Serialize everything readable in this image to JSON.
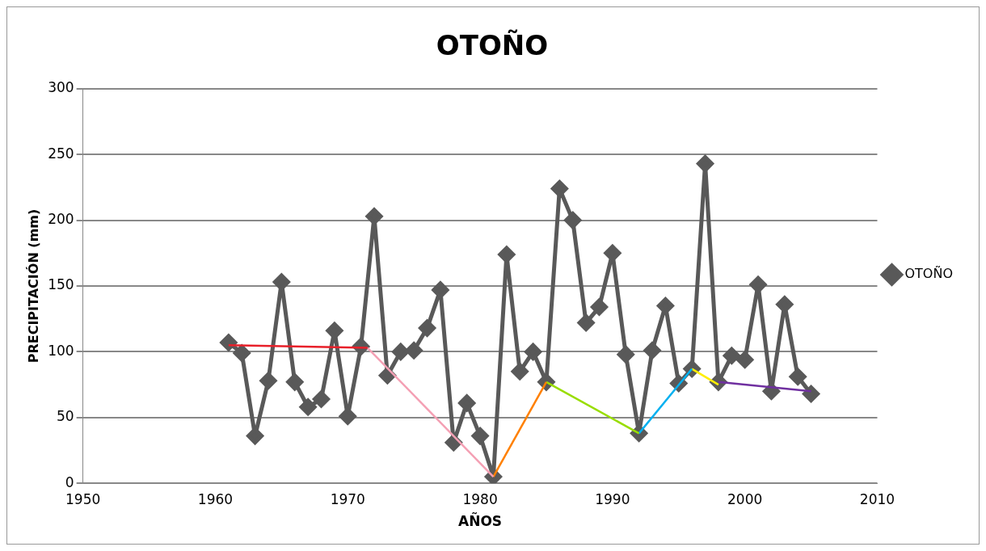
{
  "chart_data": {
    "type": "line",
    "title": "OTOÑO",
    "xlabel": "AÑOS",
    "ylabel": "PRECIPITACIÓN (mm)",
    "x": [
      1961,
      1962,
      1963,
      1964,
      1965,
      1966,
      1967,
      1968,
      1969,
      1970,
      1971,
      1972,
      1973,
      1974,
      1975,
      1976,
      1977,
      1978,
      1979,
      1980,
      1981,
      1982,
      1983,
      1984,
      1985,
      1986,
      1987,
      1988,
      1989,
      1990,
      1991,
      1992,
      1993,
      1994,
      1995,
      1996,
      1997,
      1998,
      1999,
      2000,
      2001,
      2002,
      2003,
      2004,
      2005
    ],
    "series": [
      {
        "name": "OTOÑO",
        "color": "#595959",
        "values": [
          107,
          99,
          36,
          78,
          153,
          77,
          58,
          64,
          116,
          51,
          104,
          203,
          82,
          100,
          101,
          118,
          147,
          31,
          61,
          36,
          5,
          174,
          85,
          100,
          77,
          224,
          200,
          122,
          134,
          175,
          98,
          38,
          101,
          135,
          76,
          87,
          243,
          77,
          97,
          94,
          151,
          70,
          136,
          81,
          68
        ]
      },
      {
        "type": "line",
        "marker": "none",
        "color": "#e8202a",
        "x": [
          1961,
          1971.5
        ],
        "values": [
          105,
          103
        ]
      },
      {
        "type": "line",
        "marker": "none",
        "color": "#f4a0b4",
        "x": [
          1971.5,
          1981
        ],
        "values": [
          103,
          5
        ]
      },
      {
        "type": "line",
        "marker": "none",
        "color": "#ff8000",
        "x": [
          1981,
          1985
        ],
        "values": [
          5,
          77
        ]
      },
      {
        "type": "line",
        "marker": "none",
        "color": "#99dd00",
        "x": [
          1985,
          1992
        ],
        "values": [
          77,
          38
        ]
      },
      {
        "type": "line",
        "marker": "none",
        "color": "#00b0f0",
        "x": [
          1992,
          1996
        ],
        "values": [
          38,
          87
        ]
      },
      {
        "type": "line",
        "marker": "none",
        "color": "#ffee00",
        "x": [
          1996,
          1998
        ],
        "values": [
          87,
          75
        ]
      },
      {
        "type": "line",
        "marker": "none",
        "color": "#7030a0",
        "x": [
          1998,
          2005
        ],
        "values": [
          77,
          70
        ]
      }
    ],
    "xlim": [
      1950,
      2010
    ],
    "xticks": [
      1950,
      1960,
      1970,
      1980,
      1990,
      2000,
      2010
    ],
    "ylim": [
      0,
      300
    ],
    "yticks": [
      0,
      50,
      100,
      150,
      200,
      250,
      300
    ],
    "grid": "y",
    "legend": "right",
    "marker": "diamond",
    "line_style": "solid"
  }
}
